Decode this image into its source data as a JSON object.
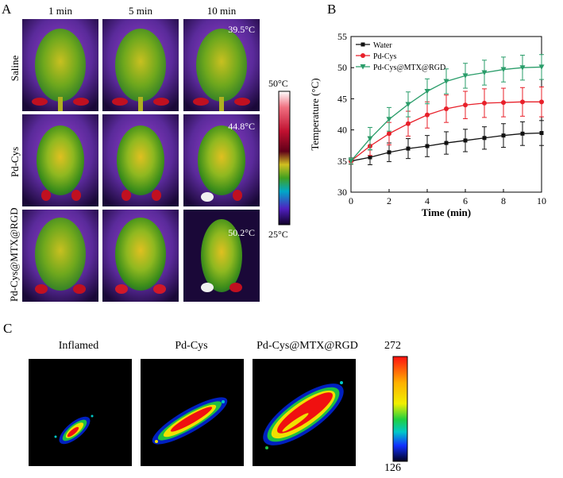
{
  "panelA": {
    "letter": "A",
    "columns": [
      "1 min",
      "5 min",
      "10 min"
    ],
    "rows": [
      "Saline",
      "Pd-Cys",
      "Pd-Cys@MTX@RGD"
    ],
    "temps": [
      "39.5°C",
      "44.8°C",
      "50.2°C"
    ],
    "colorbar": {
      "max": "50°C",
      "min": "25°C"
    }
  },
  "panelB": {
    "letter": "B"
  },
  "panelC": {
    "letter": "C",
    "titles": [
      "Inflamed",
      "Pd-Cys",
      "Pd-Cys@MTX@RGD"
    ],
    "scale_max": "272",
    "scale_min": "126"
  },
  "chart_data": {
    "type": "line",
    "title": "",
    "xlabel": "Time (min)",
    "ylabel": "Temperature (°C)",
    "xlim": [
      0,
      10
    ],
    "ylim": [
      30,
      55
    ],
    "xticks": [
      0,
      2,
      4,
      6,
      8,
      10
    ],
    "yticks": [
      30,
      35,
      40,
      45,
      50,
      55
    ],
    "x": [
      0,
      1,
      2,
      3,
      4,
      5,
      6,
      7,
      8,
      9,
      10
    ],
    "legend_position": "top-left",
    "series": [
      {
        "name": "Water",
        "color": "#111111",
        "marker": "square",
        "values": [
          35.0,
          35.6,
          36.4,
          37.0,
          37.4,
          37.9,
          38.3,
          38.7,
          39.1,
          39.4,
          39.5
        ],
        "errors": [
          0.5,
          1.2,
          1.5,
          1.6,
          1.7,
          1.8,
          1.8,
          1.8,
          1.9,
          1.9,
          2.0
        ]
      },
      {
        "name": "Pd-Cys",
        "color": "#e8202a",
        "marker": "circle",
        "values": [
          35.0,
          37.4,
          39.4,
          41.0,
          42.4,
          43.4,
          44.0,
          44.3,
          44.4,
          44.5,
          44.5
        ],
        "errors": [
          0.5,
          1.5,
          1.8,
          2.0,
          2.1,
          2.2,
          2.2,
          2.3,
          2.3,
          2.3,
          2.4
        ]
      },
      {
        "name": "Pd-Cys@MTX@RGD",
        "color": "#2a9d6a",
        "marker": "triangle-down",
        "values": [
          35.0,
          38.6,
          41.7,
          44.1,
          46.2,
          47.8,
          48.7,
          49.2,
          49.7,
          50.0,
          50.1
        ],
        "errors": [
          0.5,
          1.8,
          1.9,
          2.0,
          2.0,
          2.0,
          2.0,
          2.0,
          2.0,
          2.0,
          2.0
        ]
      }
    ]
  }
}
